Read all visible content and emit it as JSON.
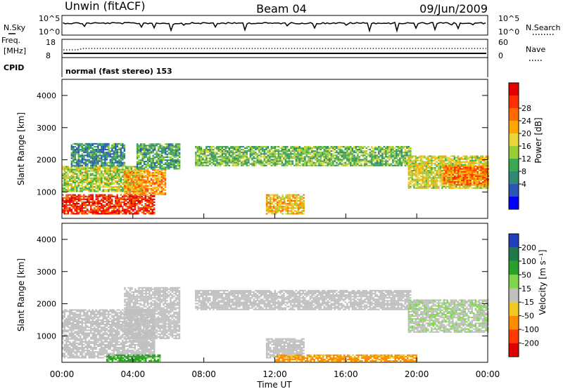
{
  "header": {
    "station": "Unwin (fitACF)",
    "beam": "Beam 04",
    "date": "09/Jun/2009"
  },
  "top_panels": {
    "nsky_label": "N.Sky",
    "nsky_ticks": [
      "10^5",
      "10^0"
    ],
    "nsearch_label": "N.Search",
    "nsearch_ticks": [
      "10^5",
      "10^0"
    ],
    "freq_label_1": "Freq.",
    "freq_label_2": "[MHz]",
    "freq_ticks": [
      "18",
      "8"
    ],
    "nave_label": "Nave",
    "nave_ticks": [
      "60",
      "0"
    ],
    "cpid_label": "CPID",
    "cpid_text": "normal (fast stereo) 153"
  },
  "power_panel": {
    "ylabel": "Slant Range [km]",
    "yticks": [
      "4000",
      "3000",
      "2000",
      "1000"
    ],
    "colorbar_label": "Power [dB]",
    "colorbar_ticks": [
      "28",
      "24",
      "20",
      "16",
      "12",
      "8",
      "4"
    ],
    "colors": [
      "#0000ff",
      "#2a56b8",
      "#2f8a73",
      "#3aaa50",
      "#9acd32",
      "#e8d53a",
      "#ffa500",
      "#ff6a00",
      "#ff3000",
      "#e60000"
    ]
  },
  "velocity_panel": {
    "ylabel": "Slant Range [km]",
    "yticks": [
      "4000",
      "3000",
      "2000",
      "1000"
    ],
    "colorbar_label": "Velocity [m s⁻¹]",
    "colorbar_ticks": [
      "200",
      "100",
      "50",
      "15",
      "-15",
      "-50",
      "-100",
      "-200"
    ],
    "colors": [
      "#1f3fbf",
      "#1f7a4a",
      "#2aa02a",
      "#7fd64a",
      "#c0c0c0",
      "#f2c820",
      "#ff8c00",
      "#ff3a00",
      "#e00000"
    ]
  },
  "time_axis": {
    "ticks": [
      "00:00",
      "04:00",
      "08:00",
      "12:00",
      "16:00",
      "20:00",
      "00:00"
    ],
    "label": "Time UT"
  },
  "chart_data": [
    {
      "type": "heatmap",
      "title": "Power",
      "xlabel": "Time UT",
      "ylabel": "Slant Range [km]",
      "xlim_hours": [
        0,
        24
      ],
      "ylim": [
        180,
        4500
      ],
      "colorbar_range_dB": [
        0,
        30
      ],
      "regions": [
        {
          "t_start": 0.0,
          "t_end": 5.2,
          "r_low": 300,
          "r_high": 900,
          "power_dB": 26
        },
        {
          "t_start": 0.0,
          "t_end": 4.5,
          "r_low": 1000,
          "r_high": 1800,
          "power_dB": 14
        },
        {
          "t_start": 0.5,
          "t_end": 3.5,
          "r_low": 1800,
          "r_high": 2500,
          "power_dB": 8
        },
        {
          "t_start": 3.5,
          "t_end": 5.8,
          "r_low": 900,
          "r_high": 1700,
          "power_dB": 20
        },
        {
          "t_start": 4.2,
          "t_end": 6.6,
          "r_low": 1700,
          "r_high": 2500,
          "power_dB": 10
        },
        {
          "t_start": 7.5,
          "t_end": 19.6,
          "r_low": 1800,
          "r_high": 2400,
          "power_dB": 12
        },
        {
          "t_start": 11.5,
          "t_end": 13.6,
          "r_low": 300,
          "r_high": 900,
          "power_dB": 18
        },
        {
          "t_start": 19.5,
          "t_end": 24.0,
          "r_low": 1100,
          "r_high": 2100,
          "power_dB": 16
        },
        {
          "t_start": 21.5,
          "t_end": 24.0,
          "r_low": 1200,
          "r_high": 1800,
          "power_dB": 22
        }
      ]
    },
    {
      "type": "heatmap",
      "title": "Velocity",
      "xlabel": "Time UT",
      "ylabel": "Slant Range [km]",
      "xlim_hours": [
        0,
        24
      ],
      "ylim": [
        180,
        4500
      ],
      "colorbar_range_ms": [
        -200,
        200
      ],
      "regions": [
        {
          "t_start": 0.0,
          "t_end": 5.2,
          "r_low": 300,
          "r_high": 1800,
          "velocity_ms": 0
        },
        {
          "t_start": 3.5,
          "t_end": 6.6,
          "r_low": 900,
          "r_high": 2500,
          "velocity_ms": 0
        },
        {
          "t_start": 7.5,
          "t_end": 19.6,
          "r_low": 1800,
          "r_high": 2400,
          "velocity_ms": 0
        },
        {
          "t_start": 11.5,
          "t_end": 13.6,
          "r_low": 300,
          "r_high": 900,
          "velocity_ms": 0
        },
        {
          "t_start": 19.5,
          "t_end": 24.0,
          "r_low": 1100,
          "r_high": 2100,
          "velocity_ms": 10
        },
        {
          "t_start": 2.5,
          "t_end": 5.5,
          "r_low": 200,
          "r_high": 400,
          "velocity_ms": 40
        },
        {
          "t_start": 12.0,
          "t_end": 20.0,
          "r_low": 200,
          "r_high": 400,
          "velocity_ms": -40
        }
      ]
    }
  ]
}
